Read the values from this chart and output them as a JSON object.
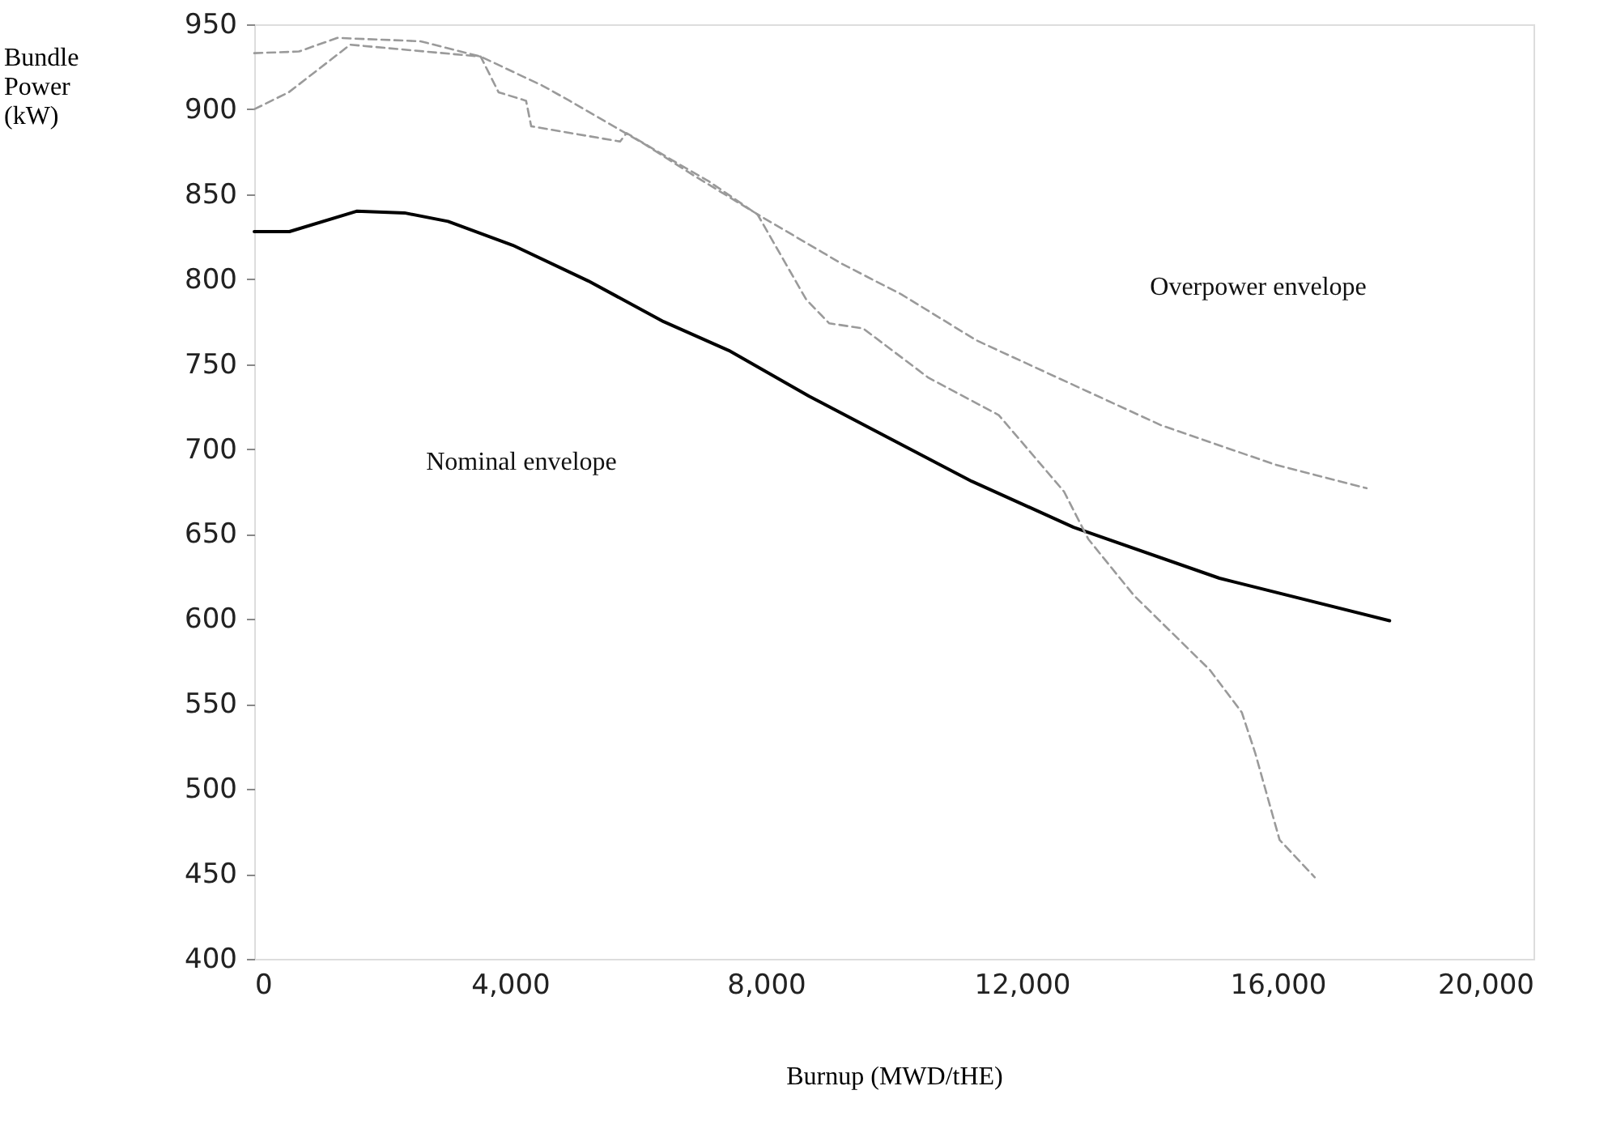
{
  "chart_data": {
    "type": "line",
    "xlabel": "Burnup (MWD/tHE)",
    "ylabel": "Bundle Power (kW)",
    "xlim": [
      0,
      20000
    ],
    "ylim": [
      400,
      950
    ],
    "xticks": [
      0,
      {
        "value": 4000,
        "label": "4,000"
      },
      {
        "value": 8000,
        "label": "8,000"
      },
      {
        "value": 12000,
        "label": "12,000"
      },
      {
        "value": 16000,
        "label": "16,000"
      },
      {
        "value": 20000,
        "label": "20,000"
      }
    ],
    "yticks": [
      400,
      450,
      500,
      550,
      600,
      650,
      700,
      750,
      800,
      850,
      900,
      950
    ],
    "grid": false,
    "series": [
      {
        "color": "#000000",
        "line_style": "solid",
        "x": [
          0,
          550,
          1600,
          2350,
          3030,
          4040,
          5220,
          6400,
          7420,
          8680,
          11220,
          12810,
          15090,
          17750
        ],
        "values": [
          828,
          828,
          840,
          839,
          834,
          820,
          799,
          775,
          758,
          731,
          681,
          654,
          624,
          599
        ]
      },
      {
        "color": "#9a9a9a",
        "line_style": "dashed",
        "x": [
          0,
          700,
          1300,
          2600,
          3540,
          4500,
          4930,
          6080,
          6830,
          7920,
          9190,
          10120,
          11290,
          12560,
          14180,
          15950,
          17390
        ],
        "values": [
          933,
          934,
          942,
          940,
          931,
          914,
          905,
          880,
          862,
          837,
          809,
          791,
          764,
          742,
          714,
          691,
          677
        ]
      },
      {
        "color": "#9a9a9a",
        "line_style": "dashed",
        "x": [
          0,
          540,
          1500,
          3540,
          3820,
          4250,
          4330,
          5720,
          5820,
          6580,
          7090,
          7870,
          8630,
          8990,
          9520,
          10540,
          11640,
          12660,
          13040,
          13750,
          14940,
          15440,
          15650,
          16030,
          16580
        ],
        "values": [
          900,
          910,
          938,
          931,
          910,
          905,
          890,
          881,
          886,
          869,
          858,
          838,
          788,
          774,
          771,
          742,
          720,
          675,
          647,
          614,
          570,
          545,
          521,
          470,
          448
        ]
      }
    ],
    "annotations": [
      "Overpower envelope",
      "Nominal envelope"
    ]
  }
}
